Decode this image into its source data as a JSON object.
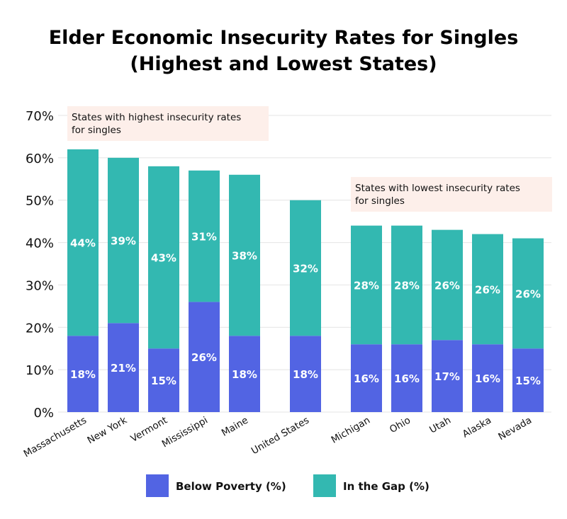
{
  "chart_data": {
    "type": "bar",
    "stacked": true,
    "title": "Elder Economic Insecurity Rates for Singles",
    "subtitle": "(Highest and Lowest States)",
    "xlabel": "",
    "ylabel": "",
    "ylim": [
      0,
      70
    ],
    "yticks": [
      "0%",
      "10%",
      "20%",
      "30%",
      "40%",
      "50%",
      "60%",
      "70%"
    ],
    "grid": true,
    "legend_placement": "bottom",
    "categories": [
      "Massachusetts",
      "New York",
      "Vermont",
      "Mississippi",
      "Maine",
      "United States",
      "Michigan",
      "Ohio",
      "Utah",
      "Alaska",
      "Nevada"
    ],
    "series": [
      {
        "name": "Below Poverty (%)",
        "color": "#5264E3",
        "values": [
          18,
          21,
          15,
          26,
          18,
          18,
          16,
          16,
          17,
          16,
          15
        ],
        "labels": [
          "18%",
          "21%",
          "15%",
          "26%",
          "18%",
          "18%",
          "16%",
          "16%",
          "17%",
          "16%",
          "15%"
        ]
      },
      {
        "name": "In the Gap (%)",
        "color": "#33B8B1",
        "values": [
          44,
          39,
          43,
          31,
          38,
          32,
          28,
          28,
          26,
          26,
          26
        ],
        "labels": [
          "44%",
          "39%",
          "43%",
          "31%",
          "38%",
          "32%",
          "28%",
          "28%",
          "26%",
          "26%",
          "26%"
        ]
      }
    ],
    "annotations": [
      {
        "text_lines": [
          "States with highest insecurity rates",
          "for singles"
        ],
        "background": "#FDEFEA"
      },
      {
        "text_lines": [
          "States with lowest insecurity rates",
          "for singles"
        ],
        "background": "#FDEFEA"
      }
    ]
  }
}
